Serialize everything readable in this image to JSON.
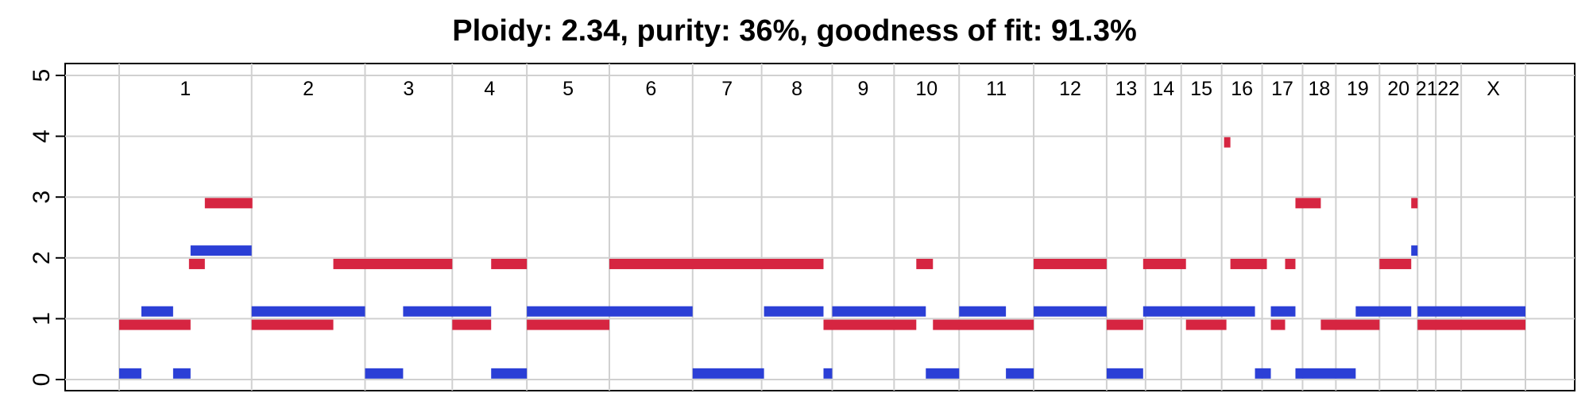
{
  "chart_data": {
    "type": "segments",
    "title": "Ploidy: 2.34, purity: 36%, goodness of fit: 91.3%",
    "xlabel": "",
    "ylabel": "",
    "ylim": [
      0,
      5
    ],
    "y_ticks": [
      "0",
      "1",
      "2",
      "3",
      "4",
      "5"
    ],
    "grid": true,
    "chromosome_axis": {
      "min": 0,
      "max": 1773
    },
    "chromosomes": [
      {
        "label": "1",
        "start": 0,
        "end": 167
      },
      {
        "label": "2",
        "start": 167,
        "end": 310
      },
      {
        "label": "3",
        "start": 310,
        "end": 420
      },
      {
        "label": "4",
        "start": 420,
        "end": 514
      },
      {
        "label": "5",
        "start": 514,
        "end": 618
      },
      {
        "label": "6",
        "start": 618,
        "end": 723
      },
      {
        "label": "7",
        "start": 723,
        "end": 810
      },
      {
        "label": "8",
        "start": 810,
        "end": 899
      },
      {
        "label": "9",
        "start": 899,
        "end": 977
      },
      {
        "label": "10",
        "start": 977,
        "end": 1059
      },
      {
        "label": "11",
        "start": 1059,
        "end": 1153
      },
      {
        "label": "12",
        "start": 1153,
        "end": 1245
      },
      {
        "label": "13",
        "start": 1245,
        "end": 1294
      },
      {
        "label": "14",
        "start": 1294,
        "end": 1339
      },
      {
        "label": "15",
        "start": 1339,
        "end": 1390
      },
      {
        "label": "16",
        "start": 1390,
        "end": 1441
      },
      {
        "label": "17",
        "start": 1441,
        "end": 1492
      },
      {
        "label": "18",
        "start": 1492,
        "end": 1534
      },
      {
        "label": "19",
        "start": 1534,
        "end": 1589
      },
      {
        "label": "20",
        "start": 1589,
        "end": 1637
      },
      {
        "label": "21",
        "start": 1637,
        "end": 1660
      },
      {
        "label": "22",
        "start": 1660,
        "end": 1692
      },
      {
        "label": "X",
        "start": 1692,
        "end": 1773
      }
    ],
    "series": [
      {
        "color": "#2b3fd6",
        "segments": [
          {
            "start": 0,
            "end": 28,
            "value": 0.1
          },
          {
            "start": 28,
            "end": 68,
            "value": 1.12
          },
          {
            "start": 68,
            "end": 90,
            "value": 0.1
          },
          {
            "start": 90,
            "end": 167,
            "value": 2.12
          },
          {
            "start": 167,
            "end": 310,
            "value": 1.12
          },
          {
            "start": 310,
            "end": 358,
            "value": 0.1
          },
          {
            "start": 358,
            "end": 469,
            "value": 1.12
          },
          {
            "start": 469,
            "end": 514,
            "value": 0.1
          },
          {
            "start": 514,
            "end": 723,
            "value": 1.12
          },
          {
            "start": 723,
            "end": 813,
            "value": 0.1
          },
          {
            "start": 813,
            "end": 888,
            "value": 1.12
          },
          {
            "start": 888,
            "end": 899,
            "value": 0.1
          },
          {
            "start": 899,
            "end": 1017,
            "value": 1.12
          },
          {
            "start": 1017,
            "end": 1059,
            "value": 0.1
          },
          {
            "start": 1059,
            "end": 1118,
            "value": 1.12
          },
          {
            "start": 1118,
            "end": 1153,
            "value": 0.1
          },
          {
            "start": 1153,
            "end": 1245,
            "value": 1.12
          },
          {
            "start": 1245,
            "end": 1291,
            "value": 0.1
          },
          {
            "start": 1291,
            "end": 1432,
            "value": 1.12
          },
          {
            "start": 1432,
            "end": 1452,
            "value": 0.1
          },
          {
            "start": 1452,
            "end": 1483,
            "value": 1.12
          },
          {
            "start": 1483,
            "end": 1559,
            "value": 0.1
          },
          {
            "start": 1559,
            "end": 1629,
            "value": 1.12
          },
          {
            "start": 1629,
            "end": 1637,
            "value": 2.12
          },
          {
            "start": 1637,
            "end": 1773,
            "value": 1.12
          }
        ]
      },
      {
        "color": "#d62541",
        "segments": [
          {
            "start": 0,
            "end": 90,
            "value": 0.9
          },
          {
            "start": 88,
            "end": 108,
            "value": 1.9
          },
          {
            "start": 108,
            "end": 168,
            "value": 2.9
          },
          {
            "start": 167,
            "end": 270,
            "value": 0.9
          },
          {
            "start": 270,
            "end": 420,
            "value": 1.9
          },
          {
            "start": 420,
            "end": 469,
            "value": 0.9
          },
          {
            "start": 469,
            "end": 514,
            "value": 1.9
          },
          {
            "start": 514,
            "end": 618,
            "value": 0.9
          },
          {
            "start": 618,
            "end": 888,
            "value": 1.9
          },
          {
            "start": 888,
            "end": 1005,
            "value": 0.9
          },
          {
            "start": 1005,
            "end": 1026,
            "value": 1.9
          },
          {
            "start": 1026,
            "end": 1153,
            "value": 0.9
          },
          {
            "start": 1153,
            "end": 1245,
            "value": 1.9
          },
          {
            "start": 1245,
            "end": 1291,
            "value": 0.9
          },
          {
            "start": 1291,
            "end": 1345,
            "value": 1.9
          },
          {
            "start": 1345,
            "end": 1396,
            "value": 0.9
          },
          {
            "start": 1393,
            "end": 1401,
            "value": 3.9
          },
          {
            "start": 1401,
            "end": 1447,
            "value": 1.9
          },
          {
            "start": 1452,
            "end": 1470,
            "value": 0.9
          },
          {
            "start": 1470,
            "end": 1483,
            "value": 1.9
          },
          {
            "start": 1483,
            "end": 1515,
            "value": 2.9
          },
          {
            "start": 1515,
            "end": 1589,
            "value": 0.9
          },
          {
            "start": 1589,
            "end": 1629,
            "value": 1.9
          },
          {
            "start": 1629,
            "end": 1637,
            "value": 2.9
          },
          {
            "start": 1637,
            "end": 1773,
            "value": 0.9
          }
        ]
      }
    ]
  }
}
